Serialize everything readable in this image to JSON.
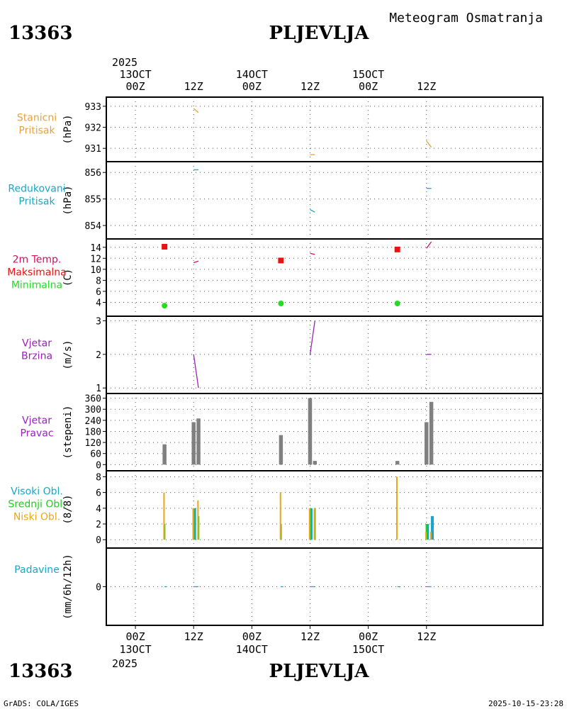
{
  "header": {
    "station_id": "13363",
    "station_name": "PLJEVLJA",
    "title": "Meteogram Osmatranja"
  },
  "footer": {
    "credit": "GrADS: COLA/IGES",
    "timestamp": "2025-10-15-23:28"
  },
  "colors": {
    "pressure": "#e8a23a",
    "reduced": "#1aa6c8",
    "temp": "#d01060",
    "tmax": "#ee1111",
    "tmin": "#22dd22",
    "wind": "#9922bb",
    "bar": "#808080",
    "high": "#1aa6c8",
    "mid": "#22cc22",
    "low": "#e8a820",
    "precip": "#1aa6c8"
  },
  "chart_data": {
    "type": "meteogram",
    "year": "2025",
    "time_axis": {
      "range_hours": [
        -6,
        84
      ],
      "ticks": [
        {
          "h": 0,
          "hour": "00Z",
          "date": "13OCT"
        },
        {
          "h": 12,
          "hour": "12Z",
          "date": ""
        },
        {
          "h": 24,
          "hour": "00Z",
          "date": "14OCT"
        },
        {
          "h": 36,
          "hour": "12Z",
          "date": ""
        },
        {
          "h": 48,
          "hour": "00Z",
          "date": "15OCT"
        },
        {
          "h": 60,
          "hour": "12Z",
          "date": ""
        }
      ]
    },
    "panels": [
      {
        "id": "stanicni",
        "labels": [
          "Stanicni",
          "Pritisak"
        ],
        "label_colors": [
          "pressure",
          "pressure"
        ],
        "unit": "(hPa)",
        "ylim": [
          930.5,
          933.3
        ],
        "yticks": [
          931,
          932,
          933
        ],
        "series": [
          {
            "type": "line",
            "color": "pressure",
            "segments": [
              [
                [
                  12,
                  932.9
                ],
                [
                  13,
                  932.7
                ]
              ],
              [
                [
                  36,
                  930.7
                ],
                [
                  37,
                  930.7
                ]
              ],
              [
                [
                  60,
                  931.35
                ],
                [
                  61,
                  931.05
                ]
              ]
            ]
          }
        ]
      },
      {
        "id": "redukovani",
        "labels": [
          "Redukovani",
          "Pritisak"
        ],
        "label_colors": [
          "reduced",
          "reduced"
        ],
        "unit": "(hPa)",
        "ylim": [
          853.6,
          856.3
        ],
        "yticks": [
          854,
          855,
          856
        ],
        "series": [
          {
            "type": "line",
            "color": "reduced",
            "segments": [
              [
                [
                  12,
                  856.1
                ],
                [
                  13,
                  856.1
                ]
              ],
              [
                [
                  36,
                  854.6
                ],
                [
                  37,
                  854.5
                ]
              ],
              [
                [
                  60,
                  855.4
                ],
                [
                  61,
                  855.4
                ]
              ]
            ]
          }
        ]
      },
      {
        "id": "temperatura",
        "labels": [
          "2m Temp.",
          "Maksimalna",
          "Minimalna"
        ],
        "label_colors": [
          "temp",
          "tmax",
          "tmin"
        ],
        "unit": "(C)",
        "ylim": [
          2,
          15
        ],
        "yticks": [
          4,
          6,
          8,
          10,
          12,
          14
        ],
        "series": [
          {
            "type": "line",
            "color": "temp",
            "segments": [
              [
                [
                  12,
                  11.2
                ],
                [
                  13,
                  11.5
                ]
              ],
              [
                [
                  36,
                  12.9
                ],
                [
                  37,
                  12.7
                ]
              ],
              [
                [
                  60,
                  13.8
                ],
                [
                  61,
                  15
                ]
              ]
            ]
          },
          {
            "type": "square",
            "color": "tmax",
            "points": [
              [
                6,
                14.1
              ],
              [
                30,
                11.6
              ],
              [
                54,
                13.6
              ]
            ]
          },
          {
            "type": "dot",
            "color": "tmin",
            "points": [
              [
                6,
                3.4
              ],
              [
                30,
                3.8
              ],
              [
                54,
                3.8
              ]
            ]
          }
        ]
      },
      {
        "id": "vjetar-brzina",
        "labels": [
          "Vjetar",
          "Brzina"
        ],
        "label_colors": [
          "wind",
          "wind"
        ],
        "unit": "(m/s)",
        "ylim": [
          0.92,
          3.05
        ],
        "yticks": [
          1,
          2,
          3
        ],
        "series": [
          {
            "type": "line",
            "color": "wind",
            "segments": [
              [
                [
                  12,
                  2.0
                ],
                [
                  13,
                  1.0
                ]
              ],
              [
                [
                  36,
                  2.0
                ],
                [
                  37,
                  3.0
                ]
              ],
              [
                [
                  60,
                  2.0
                ],
                [
                  61,
                  2.0
                ]
              ]
            ]
          }
        ]
      },
      {
        "id": "vjetar-pravac",
        "labels": [
          "Vjetar",
          "Pravac"
        ],
        "label_colors": [
          "wind",
          "wind"
        ],
        "unit": "(stepeni)",
        "ylim": [
          -18,
          370
        ],
        "yticks": [
          0,
          60,
          120,
          180,
          240,
          300,
          360
        ],
        "series": [
          {
            "type": "bars",
            "color": "bar",
            "width_h": 0.8,
            "points": [
              [
                6,
                110
              ],
              [
                12,
                230
              ],
              [
                13,
                250
              ],
              [
                30,
                160
              ],
              [
                36,
                360
              ],
              [
                37,
                20
              ],
              [
                54,
                20
              ],
              [
                60,
                230
              ],
              [
                61,
                340
              ]
            ]
          }
        ]
      },
      {
        "id": "oblaci",
        "labels": [
          "Visoki Obl.",
          "Srednji Obl.",
          "Niski Obl."
        ],
        "label_colors": [
          "high",
          "mid",
          "low"
        ],
        "unit": "(8/8)",
        "ylim": [
          -0.7,
          8.4
        ],
        "yticks": [
          0,
          2,
          4,
          6,
          8
        ],
        "series": [
          {
            "type": "bars",
            "color": "high",
            "width_h": 0.6,
            "offset_h": 0.2,
            "points": [
              [
                12,
                4
              ],
              [
                36,
                4
              ],
              [
                60,
                2
              ],
              [
                61,
                3
              ]
            ]
          },
          {
            "type": "bars",
            "color": "mid",
            "width_h": 0.35,
            "offset_h": 0,
            "points": [
              [
                6,
                2
              ],
              [
                12,
                4
              ],
              [
                13,
                3
              ],
              [
                30,
                2
              ],
              [
                36,
                4
              ],
              [
                37,
                4
              ],
              [
                60,
                2
              ]
            ]
          },
          {
            "type": "bars",
            "color": "low",
            "width_h": 0.3,
            "offset_h": -0.1,
            "points": [
              [
                6,
                6
              ],
              [
                12,
                4
              ],
              [
                13,
                5
              ],
              [
                30,
                6
              ],
              [
                36,
                4
              ],
              [
                37,
                4
              ],
              [
                54,
                8
              ],
              [
                60,
                1
              ],
              [
                61,
                1
              ]
            ]
          }
        ]
      },
      {
        "id": "padavine",
        "labels": [
          "Padavine"
        ],
        "label_colors": [
          "precip"
        ],
        "unit": "(mm/6h/12h)",
        "ylim": [
          -1,
          1
        ],
        "yticks": [
          0
        ],
        "series": [
          {
            "type": "line",
            "color": "precip",
            "segments": [
              [
                [
                  6,
                  0
                ],
                [
                  6.5,
                  0
                ]
              ],
              [
                [
                  12,
                  0
                ],
                [
                  13,
                  0
                ]
              ],
              [
                [
                  30,
                  0
                ],
                [
                  30.5,
                  0
                ]
              ],
              [
                [
                  36,
                  0
                ],
                [
                  37,
                  0
                ]
              ],
              [
                [
                  54,
                  0
                ],
                [
                  54.5,
                  0
                ]
              ],
              [
                [
                  60,
                  0
                ],
                [
                  61,
                  0
                ]
              ]
            ]
          }
        ]
      }
    ]
  }
}
